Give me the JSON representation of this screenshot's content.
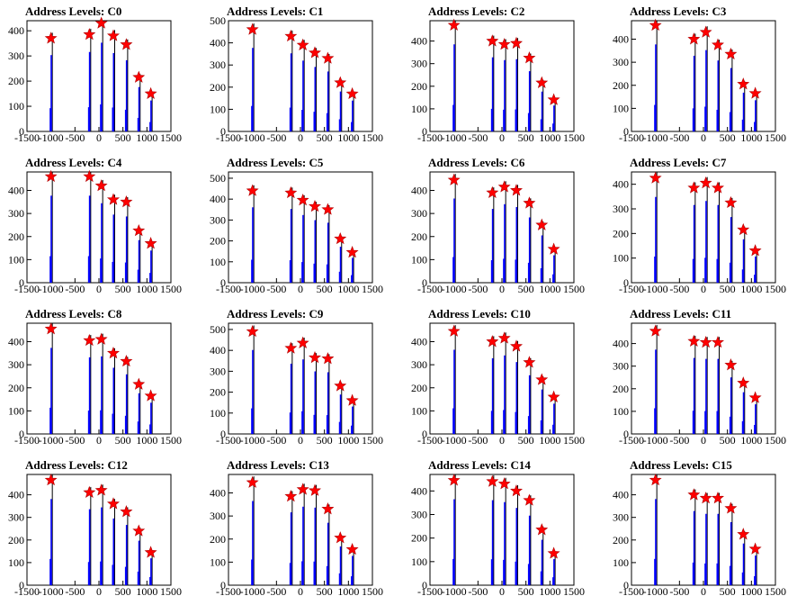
{
  "colors": {
    "bar": "#0000ff",
    "stem": "#000000",
    "marker": "#ff0000",
    "frame": "#000000"
  },
  "panels": [
    {
      "title": "Address Levels: C0",
      "ylim": [
        0,
        440
      ],
      "yticks": [
        0,
        100,
        200,
        300,
        400
      ],
      "peaks": [
        [
          -1000,
          370
        ],
        [
          -200,
          385
        ],
        [
          50,
          430
        ],
        [
          300,
          380
        ],
        [
          570,
          345
        ],
        [
          830,
          215
        ],
        [
          1080,
          150
        ]
      ]
    },
    {
      "title": "Address Levels: C1",
      "ylim": [
        0,
        500
      ],
      "yticks": [
        0,
        100,
        200,
        300,
        400,
        500
      ],
      "peaks": [
        [
          -1000,
          460
        ],
        [
          -200,
          430
        ],
        [
          50,
          390
        ],
        [
          300,
          355
        ],
        [
          570,
          330
        ],
        [
          830,
          220
        ],
        [
          1080,
          170
        ]
      ]
    },
    {
      "title": "Address Levels: C2",
      "ylim": [
        0,
        490
      ],
      "yticks": [
        0,
        100,
        200,
        300,
        400
      ],
      "peaks": [
        [
          -1000,
          470
        ],
        [
          -200,
          400
        ],
        [
          50,
          385
        ],
        [
          300,
          390
        ],
        [
          570,
          325
        ],
        [
          830,
          215
        ],
        [
          1080,
          140
        ]
      ]
    },
    {
      "title": "Address Levels: C3",
      "ylim": [
        0,
        480
      ],
      "yticks": [
        0,
        100,
        200,
        300,
        400
      ],
      "peaks": [
        [
          -1000,
          460
        ],
        [
          -200,
          400
        ],
        [
          50,
          430
        ],
        [
          300,
          375
        ],
        [
          570,
          335
        ],
        [
          830,
          205
        ],
        [
          1080,
          165
        ]
      ]
    },
    {
      "title": "Address Levels: C4",
      "ylim": [
        0,
        480
      ],
      "yticks": [
        0,
        100,
        200,
        300,
        400
      ],
      "peaks": [
        [
          -1000,
          460
        ],
        [
          -200,
          460
        ],
        [
          50,
          420
        ],
        [
          300,
          360
        ],
        [
          570,
          350
        ],
        [
          830,
          225
        ],
        [
          1080,
          170
        ]
      ]
    },
    {
      "title": "Address Levels: C5",
      "ylim": [
        0,
        530
      ],
      "yticks": [
        0,
        100,
        200,
        300,
        400,
        500
      ],
      "peaks": [
        [
          -1000,
          440
        ],
        [
          -200,
          430
        ],
        [
          50,
          395
        ],
        [
          300,
          365
        ],
        [
          570,
          350
        ],
        [
          830,
          210
        ],
        [
          1080,
          145
        ]
      ]
    },
    {
      "title": "Address Levels: C6",
      "ylim": [
        0,
        480
      ],
      "yticks": [
        0,
        100,
        200,
        300,
        400
      ],
      "peaks": [
        [
          -1000,
          445
        ],
        [
          -200,
          390
        ],
        [
          50,
          415
        ],
        [
          300,
          400
        ],
        [
          570,
          345
        ],
        [
          830,
          250
        ],
        [
          1080,
          145
        ]
      ]
    },
    {
      "title": "Address Levels: C7",
      "ylim": [
        0,
        450
      ],
      "yticks": [
        0,
        100,
        200,
        300,
        400
      ],
      "peaks": [
        [
          -1000,
          425
        ],
        [
          -200,
          385
        ],
        [
          50,
          405
        ],
        [
          300,
          385
        ],
        [
          570,
          325
        ],
        [
          830,
          215
        ],
        [
          1080,
          130
        ]
      ]
    },
    {
      "title": "Address Levels: C8",
      "ylim": [
        0,
        480
      ],
      "yticks": [
        0,
        100,
        200,
        300,
        400
      ],
      "peaks": [
        [
          -1000,
          455
        ],
        [
          -200,
          405
        ],
        [
          50,
          410
        ],
        [
          300,
          350
        ],
        [
          570,
          315
        ],
        [
          830,
          215
        ],
        [
          1080,
          165
        ]
      ]
    },
    {
      "title": "Address Levels: C9",
      "ylim": [
        0,
        530
      ],
      "yticks": [
        0,
        100,
        200,
        300,
        400,
        500
      ],
      "peaks": [
        [
          -1000,
          490
        ],
        [
          -200,
          410
        ],
        [
          50,
          435
        ],
        [
          300,
          365
        ],
        [
          570,
          360
        ],
        [
          830,
          230
        ],
        [
          1080,
          160
        ]
      ]
    },
    {
      "title": "Address Levels: C10",
      "ylim": [
        0,
        480
      ],
      "yticks": [
        0,
        100,
        200,
        300,
        400
      ],
      "peaks": [
        [
          -1000,
          445
        ],
        [
          -200,
          400
        ],
        [
          50,
          415
        ],
        [
          300,
          380
        ],
        [
          570,
          310
        ],
        [
          830,
          235
        ],
        [
          1080,
          160
        ]
      ]
    },
    {
      "title": "Address Levels: C11",
      "ylim": [
        0,
        490
      ],
      "yticks": [
        0,
        100,
        200,
        300,
        400
      ],
      "peaks": [
        [
          -1000,
          455
        ],
        [
          -200,
          410
        ],
        [
          50,
          405
        ],
        [
          300,
          405
        ],
        [
          570,
          305
        ],
        [
          830,
          225
        ],
        [
          1080,
          160
        ]
      ]
    },
    {
      "title": "Address Levels: C12",
      "ylim": [
        0,
        490
      ],
      "yticks": [
        0,
        100,
        200,
        300,
        400
      ],
      "peaks": [
        [
          -1000,
          465
        ],
        [
          -200,
          410
        ],
        [
          50,
          420
        ],
        [
          300,
          360
        ],
        [
          570,
          325
        ],
        [
          830,
          240
        ],
        [
          1080,
          145
        ]
      ]
    },
    {
      "title": "Address Levels: C13",
      "ylim": [
        0,
        480
      ],
      "yticks": [
        0,
        100,
        200,
        300,
        400
      ],
      "peaks": [
        [
          -1000,
          445
        ],
        [
          -200,
          385
        ],
        [
          50,
          415
        ],
        [
          300,
          410
        ],
        [
          570,
          330
        ],
        [
          830,
          205
        ],
        [
          1080,
          155
        ]
      ]
    },
    {
      "title": "Address Levels: C14",
      "ylim": [
        0,
        470
      ],
      "yticks": [
        0,
        100,
        200,
        300,
        400
      ],
      "peaks": [
        [
          -1000,
          445
        ],
        [
          -200,
          440
        ],
        [
          50,
          430
        ],
        [
          300,
          400
        ],
        [
          570,
          360
        ],
        [
          830,
          235
        ],
        [
          1080,
          135
        ]
      ]
    },
    {
      "title": "Address Levels: C15",
      "ylim": [
        0,
        490
      ],
      "yticks": [
        0,
        100,
        200,
        300,
        400
      ],
      "peaks": [
        [
          -1000,
          465
        ],
        [
          -200,
          400
        ],
        [
          50,
          385
        ],
        [
          300,
          385
        ],
        [
          570,
          340
        ],
        [
          830,
          225
        ],
        [
          1080,
          160
        ]
      ]
    }
  ],
  "chart_data": {
    "type": "bar",
    "xlim": [
      -1500,
      1500
    ],
    "xticks": [
      -1500,
      -1000,
      -500,
      0,
      500,
      1000,
      1500
    ],
    "xtick_labels": [
      "-1500",
      "-1000",
      "-500",
      "0",
      "500",
      "1000",
      "1500"
    ],
    "series_per_panel": "histogram of address levels with red star markers at each peak (x, y)",
    "peak_x": [
      -1000,
      -200,
      50,
      300,
      570,
      830,
      1080
    ]
  }
}
